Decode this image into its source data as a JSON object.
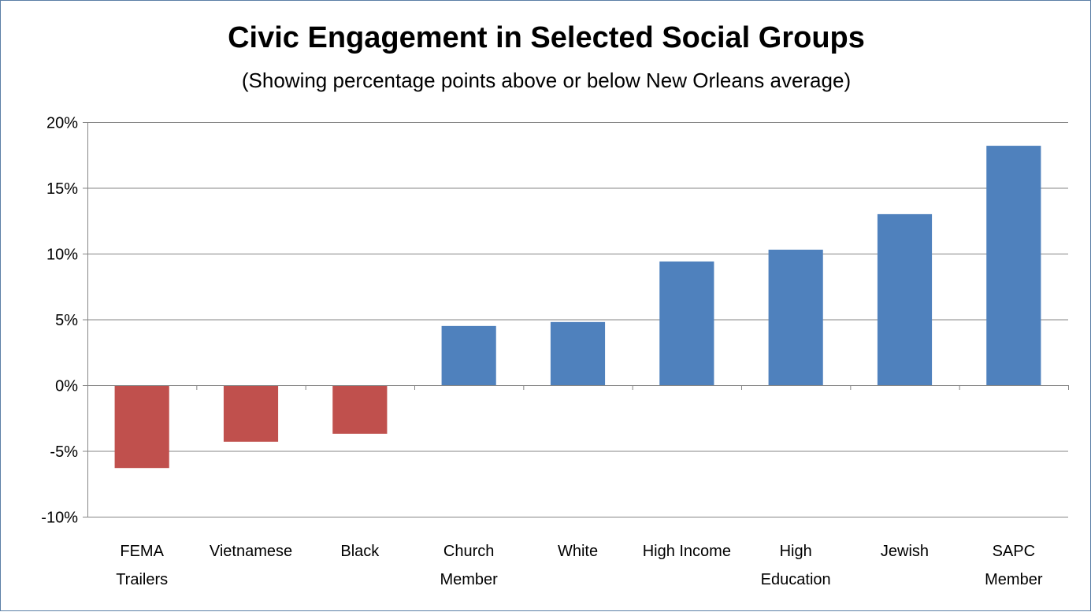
{
  "chart_data": {
    "type": "bar",
    "title": "Civic Engagement in Selected Social Groups",
    "subtitle": "(Showing percentage points above or below New Orleans average)",
    "xlabel": "",
    "ylabel": "",
    "categories": [
      [
        "FEMA",
        "Trailers"
      ],
      [
        "Vietnamese"
      ],
      [
        "Black"
      ],
      [
        "Church",
        "Member"
      ],
      [
        "White"
      ],
      [
        "High Income"
      ],
      [
        "High",
        "Education"
      ],
      [
        "Jewish"
      ],
      [
        "SAPC",
        "Member"
      ]
    ],
    "values": [
      -6.3,
      -4.3,
      -3.7,
      4.5,
      4.8,
      9.4,
      10.3,
      13.0,
      18.2
    ],
    "ylim": [
      -10,
      20
    ],
    "yticks": [
      -10,
      -5,
      0,
      5,
      10,
      15,
      20
    ],
    "ytick_labels": [
      "-10%",
      "-5%",
      "0%",
      "5%",
      "10%",
      "15%",
      "20%"
    ],
    "grid": true,
    "legend": "none",
    "colors": {
      "positive": "#4f81bd",
      "negative": "#c0504d",
      "grid": "#868686",
      "axis": "#868686"
    }
  }
}
